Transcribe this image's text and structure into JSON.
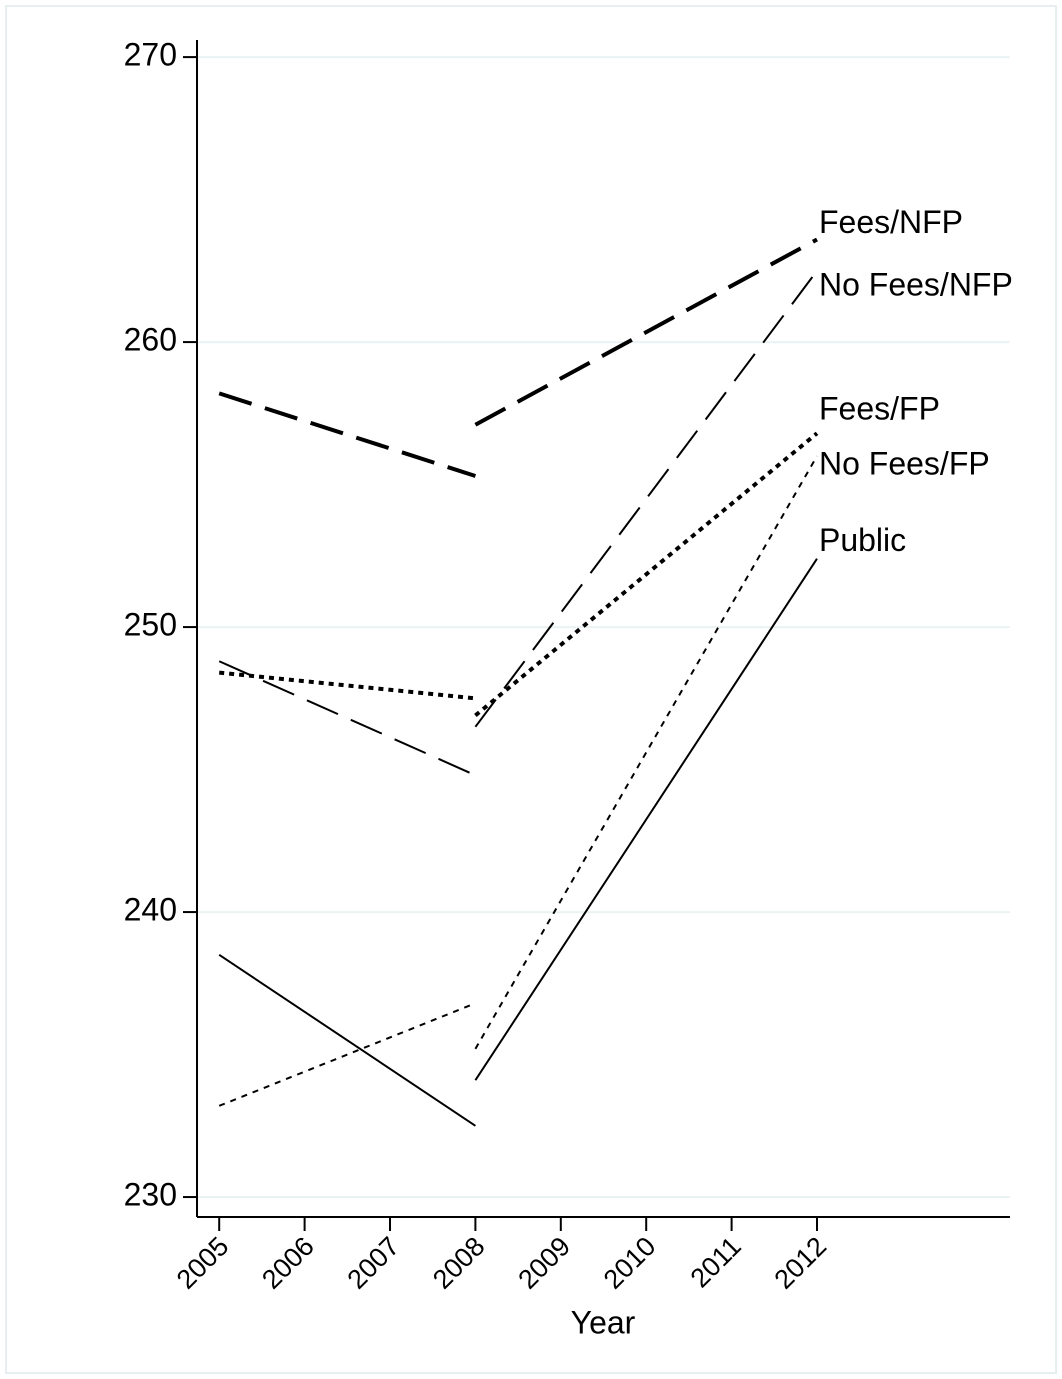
{
  "chart_data": {
    "type": "line",
    "x_label": "Year",
    "x": [
      2005,
      2008,
      null,
      2008,
      2012
    ],
    "series": [
      {
        "name": "Fees/NFP",
        "color": "#000000",
        "values": [
          258.2,
          255.3,
          null,
          257.1,
          263.6
        ]
      },
      {
        "name": "No Fees/NFP",
        "color": "#000000",
        "values": [
          248.8,
          244.8,
          null,
          246.5,
          262.5
        ]
      },
      {
        "name": "Fees/FP",
        "color": "#000000",
        "values": [
          248.4,
          247.5,
          null,
          246.9,
          256.8
        ]
      },
      {
        "name": "No Fees/FP",
        "color": "#000000",
        "values": [
          233.2,
          236.8,
          null,
          235.2,
          256.0
        ]
      },
      {
        "name": "Public",
        "color": "#000000",
        "values": [
          238.5,
          232.5,
          null,
          234.1,
          252.4
        ]
      }
    ],
    "xlim": [
      2004.74,
      2014.26
    ],
    "xticks": [
      2005,
      2006,
      2007,
      2008,
      2009,
      2010,
      2011,
      2012
    ],
    "ylim": [
      229.3,
      270.6
    ],
    "yticks": [
      230,
      240,
      250,
      260,
      270
    ],
    "grid": true
  }
}
